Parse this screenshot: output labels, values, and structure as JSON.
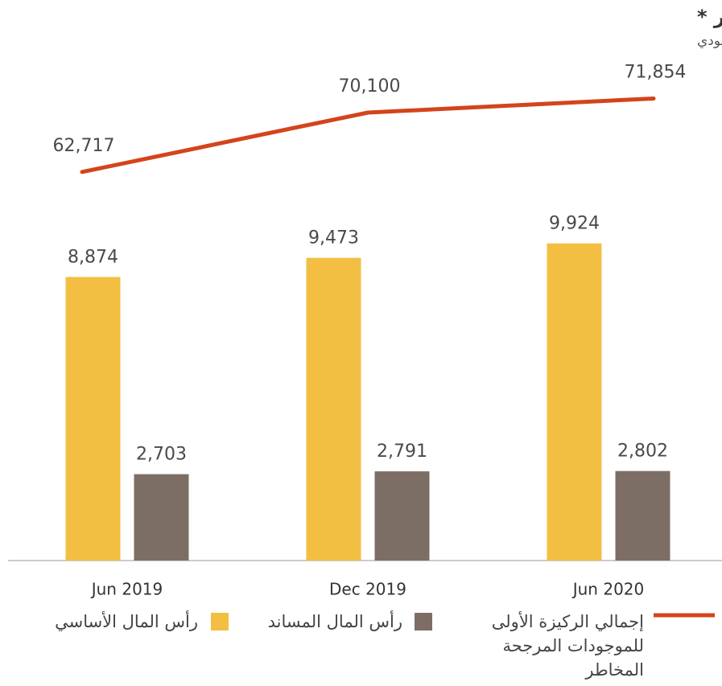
{
  "chart_data": {
    "type": "bar_line",
    "title": "رأس المال والموجودات المرجحة المخاطر *",
    "subtitle": "مليون ريال سعودي",
    "categories": [
      "Jun 2019",
      "Dec 2019",
      "Jun 2020"
    ],
    "series": [
      {
        "name": "رأس المال الأساسي",
        "color": "#f2bf43",
        "type": "bar",
        "values": [
          8874,
          9473,
          9924
        ],
        "value_labels": [
          "8,874",
          "9,473",
          "9,924"
        ]
      },
      {
        "name": "رأس المال المساند",
        "color": "#7d6e65",
        "type": "bar",
        "values": [
          2703,
          2791,
          2802
        ],
        "value_labels": [
          "2,703",
          "2,791",
          "2,802"
        ]
      },
      {
        "name": "إجمالي الركيزة الأولى للموجودات المرجحة المخاطر",
        "color": "#d4441a",
        "type": "line",
        "axis": "y2",
        "values": [
          62717,
          70100,
          71854
        ],
        "value_labels": [
          "62,717",
          "70,100",
          "71,854"
        ]
      }
    ],
    "ylim": [
      0,
      15000
    ],
    "y2lim": [
      14400,
      74000
    ]
  }
}
